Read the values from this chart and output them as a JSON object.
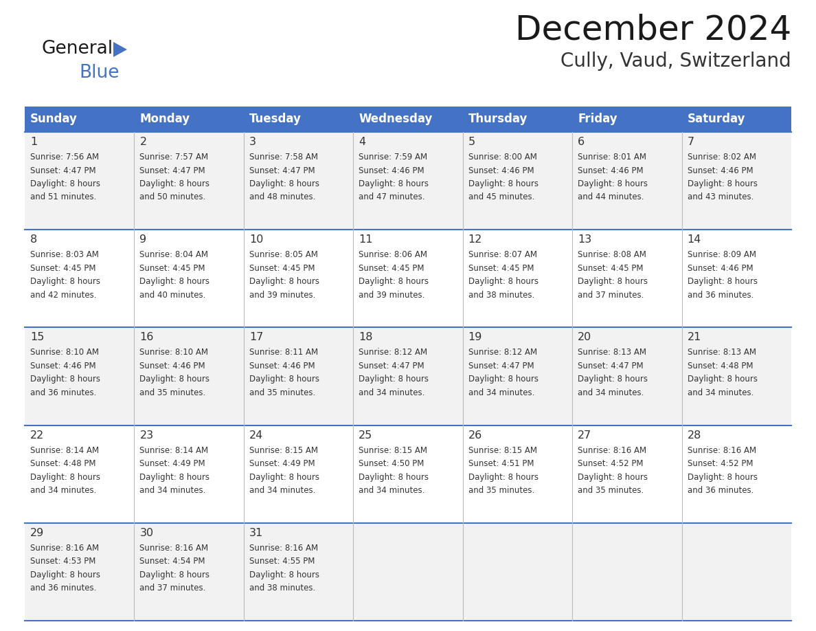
{
  "title": "December 2024",
  "subtitle": "Cully, Vaud, Switzerland",
  "header_color": "#4472C4",
  "header_text_color": "#FFFFFF",
  "day_names": [
    "Sunday",
    "Monday",
    "Tuesday",
    "Wednesday",
    "Thursday",
    "Friday",
    "Saturday"
  ],
  "row_bg_colors": [
    "#F2F2F2",
    "#FFFFFF"
  ],
  "border_color": "#4472C4",
  "text_color": "#333333",
  "days": [
    {
      "day": 1,
      "col": 0,
      "row": 0,
      "sunrise": "7:56 AM",
      "sunset": "4:47 PM",
      "daylight": "8 hours and 51 minutes."
    },
    {
      "day": 2,
      "col": 1,
      "row": 0,
      "sunrise": "7:57 AM",
      "sunset": "4:47 PM",
      "daylight": "8 hours and 50 minutes."
    },
    {
      "day": 3,
      "col": 2,
      "row": 0,
      "sunrise": "7:58 AM",
      "sunset": "4:47 PM",
      "daylight": "8 hours and 48 minutes."
    },
    {
      "day": 4,
      "col": 3,
      "row": 0,
      "sunrise": "7:59 AM",
      "sunset": "4:46 PM",
      "daylight": "8 hours and 47 minutes."
    },
    {
      "day": 5,
      "col": 4,
      "row": 0,
      "sunrise": "8:00 AM",
      "sunset": "4:46 PM",
      "daylight": "8 hours and 45 minutes."
    },
    {
      "day": 6,
      "col": 5,
      "row": 0,
      "sunrise": "8:01 AM",
      "sunset": "4:46 PM",
      "daylight": "8 hours and 44 minutes."
    },
    {
      "day": 7,
      "col": 6,
      "row": 0,
      "sunrise": "8:02 AM",
      "sunset": "4:46 PM",
      "daylight": "8 hours and 43 minutes."
    },
    {
      "day": 8,
      "col": 0,
      "row": 1,
      "sunrise": "8:03 AM",
      "sunset": "4:45 PM",
      "daylight": "8 hours and 42 minutes."
    },
    {
      "day": 9,
      "col": 1,
      "row": 1,
      "sunrise": "8:04 AM",
      "sunset": "4:45 PM",
      "daylight": "8 hours and 40 minutes."
    },
    {
      "day": 10,
      "col": 2,
      "row": 1,
      "sunrise": "8:05 AM",
      "sunset": "4:45 PM",
      "daylight": "8 hours and 39 minutes."
    },
    {
      "day": 11,
      "col": 3,
      "row": 1,
      "sunrise": "8:06 AM",
      "sunset": "4:45 PM",
      "daylight": "8 hours and 39 minutes."
    },
    {
      "day": 12,
      "col": 4,
      "row": 1,
      "sunrise": "8:07 AM",
      "sunset": "4:45 PM",
      "daylight": "8 hours and 38 minutes."
    },
    {
      "day": 13,
      "col": 5,
      "row": 1,
      "sunrise": "8:08 AM",
      "sunset": "4:45 PM",
      "daylight": "8 hours and 37 minutes."
    },
    {
      "day": 14,
      "col": 6,
      "row": 1,
      "sunrise": "8:09 AM",
      "sunset": "4:46 PM",
      "daylight": "8 hours and 36 minutes."
    },
    {
      "day": 15,
      "col": 0,
      "row": 2,
      "sunrise": "8:10 AM",
      "sunset": "4:46 PM",
      "daylight": "8 hours and 36 minutes."
    },
    {
      "day": 16,
      "col": 1,
      "row": 2,
      "sunrise": "8:10 AM",
      "sunset": "4:46 PM",
      "daylight": "8 hours and 35 minutes."
    },
    {
      "day": 17,
      "col": 2,
      "row": 2,
      "sunrise": "8:11 AM",
      "sunset": "4:46 PM",
      "daylight": "8 hours and 35 minutes."
    },
    {
      "day": 18,
      "col": 3,
      "row": 2,
      "sunrise": "8:12 AM",
      "sunset": "4:47 PM",
      "daylight": "8 hours and 34 minutes."
    },
    {
      "day": 19,
      "col": 4,
      "row": 2,
      "sunrise": "8:12 AM",
      "sunset": "4:47 PM",
      "daylight": "8 hours and 34 minutes."
    },
    {
      "day": 20,
      "col": 5,
      "row": 2,
      "sunrise": "8:13 AM",
      "sunset": "4:47 PM",
      "daylight": "8 hours and 34 minutes."
    },
    {
      "day": 21,
      "col": 6,
      "row": 2,
      "sunrise": "8:13 AM",
      "sunset": "4:48 PM",
      "daylight": "8 hours and 34 minutes."
    },
    {
      "day": 22,
      "col": 0,
      "row": 3,
      "sunrise": "8:14 AM",
      "sunset": "4:48 PM",
      "daylight": "8 hours and 34 minutes."
    },
    {
      "day": 23,
      "col": 1,
      "row": 3,
      "sunrise": "8:14 AM",
      "sunset": "4:49 PM",
      "daylight": "8 hours and 34 minutes."
    },
    {
      "day": 24,
      "col": 2,
      "row": 3,
      "sunrise": "8:15 AM",
      "sunset": "4:49 PM",
      "daylight": "8 hours and 34 minutes."
    },
    {
      "day": 25,
      "col": 3,
      "row": 3,
      "sunrise": "8:15 AM",
      "sunset": "4:50 PM",
      "daylight": "8 hours and 34 minutes."
    },
    {
      "day": 26,
      "col": 4,
      "row": 3,
      "sunrise": "8:15 AM",
      "sunset": "4:51 PM",
      "daylight": "8 hours and 35 minutes."
    },
    {
      "day": 27,
      "col": 5,
      "row": 3,
      "sunrise": "8:16 AM",
      "sunset": "4:52 PM",
      "daylight": "8 hours and 35 minutes."
    },
    {
      "day": 28,
      "col": 6,
      "row": 3,
      "sunrise": "8:16 AM",
      "sunset": "4:52 PM",
      "daylight": "8 hours and 36 minutes."
    },
    {
      "day": 29,
      "col": 0,
      "row": 4,
      "sunrise": "8:16 AM",
      "sunset": "4:53 PM",
      "daylight": "8 hours and 36 minutes."
    },
    {
      "day": 30,
      "col": 1,
      "row": 4,
      "sunrise": "8:16 AM",
      "sunset": "4:54 PM",
      "daylight": "8 hours and 37 minutes."
    },
    {
      "day": 31,
      "col": 2,
      "row": 4,
      "sunrise": "8:16 AM",
      "sunset": "4:55 PM",
      "daylight": "8 hours and 38 minutes."
    }
  ],
  "logo_text1": "General",
  "logo_text2": "Blue",
  "num_rows": 5,
  "fig_width": 11.88,
  "fig_height": 9.18,
  "dpi": 100
}
